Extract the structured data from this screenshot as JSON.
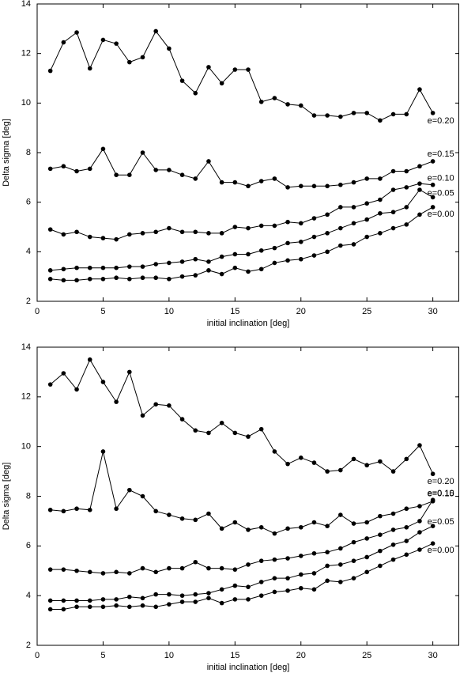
{
  "chart_data": [
    {
      "type": "line",
      "xlabel": "initial inclination [deg]",
      "ylabel": "Delta sigma [deg]",
      "x": [
        1,
        2,
        3,
        4,
        5,
        6,
        7,
        8,
        9,
        10,
        11,
        12,
        13,
        14,
        15,
        16,
        17,
        18,
        19,
        20,
        21,
        22,
        23,
        24,
        25,
        26,
        27,
        28,
        29,
        30
      ],
      "xlim": [
        0,
        32
      ],
      "xticks": [
        0,
        5,
        10,
        15,
        20,
        25,
        30
      ],
      "ylim": [
        2,
        14
      ],
      "yticks": [
        2,
        4,
        6,
        8,
        10,
        12,
        14
      ],
      "series": [
        {
          "name": "e=0.20",
          "color": "#000000",
          "values": [
            11.3,
            12.45,
            12.85,
            11.4,
            12.55,
            12.4,
            11.65,
            11.85,
            12.9,
            12.2,
            10.9,
            10.4,
            11.45,
            10.8,
            11.35,
            11.35,
            10.05,
            10.2,
            9.95,
            9.9,
            9.5,
            9.5,
            9.45,
            9.6,
            9.6,
            9.3,
            9.55,
            9.55,
            10.55,
            9.6
          ]
        },
        {
          "name": "e=0.15",
          "color": "#000000",
          "values": [
            7.35,
            7.45,
            7.25,
            7.35,
            8.15,
            7.1,
            7.1,
            8.0,
            7.3,
            7.3,
            7.1,
            6.95,
            7.65,
            6.8,
            6.8,
            6.65,
            6.85,
            6.95,
            6.6,
            6.65,
            6.65,
            6.65,
            6.7,
            6.8,
            6.95,
            6.95,
            7.25,
            7.25,
            7.45,
            7.65
          ]
        },
        {
          "name": "e=0.10",
          "color": "#000000",
          "values": [
            4.9,
            4.7,
            4.8,
            4.6,
            4.55,
            4.5,
            4.7,
            4.75,
            4.8,
            4.95,
            4.8,
            4.8,
            4.75,
            4.75,
            5.0,
            4.95,
            5.05,
            5.05,
            5.2,
            5.15,
            5.35,
            5.5,
            5.8,
            5.8,
            5.95,
            6.1,
            6.5,
            6.6,
            6.75,
            6.7
          ]
        },
        {
          "name": "e=0.05",
          "color": "#000000",
          "values": [
            3.25,
            3.3,
            3.35,
            3.35,
            3.35,
            3.35,
            3.4,
            3.4,
            3.5,
            3.55,
            3.6,
            3.7,
            3.6,
            3.8,
            3.9,
            3.9,
            4.05,
            4.15,
            4.35,
            4.4,
            4.6,
            4.75,
            4.95,
            5.15,
            5.3,
            5.55,
            5.6,
            5.8,
            6.5,
            6.2
          ]
        },
        {
          "name": "e=0.00",
          "color": "#000000",
          "values": [
            2.9,
            2.85,
            2.85,
            2.9,
            2.9,
            2.95,
            2.9,
            2.95,
            2.95,
            2.9,
            3.0,
            3.05,
            3.25,
            3.1,
            3.35,
            3.2,
            3.3,
            3.55,
            3.65,
            3.7,
            3.85,
            4.0,
            4.25,
            4.3,
            4.6,
            4.75,
            4.95,
            5.1,
            5.5,
            5.8
          ]
        }
      ]
    },
    {
      "type": "line",
      "xlabel": "initial inclination [deg]",
      "ylabel": "Delta sigma [deg]",
      "x": [
        1,
        2,
        3,
        4,
        5,
        6,
        7,
        8,
        9,
        10,
        11,
        12,
        13,
        14,
        15,
        16,
        17,
        18,
        19,
        20,
        21,
        22,
        23,
        24,
        25,
        26,
        27,
        28,
        29,
        30
      ],
      "xlim": [
        0,
        32
      ],
      "xticks": [
        0,
        5,
        10,
        15,
        20,
        25,
        30
      ],
      "ylim": [
        2,
        14
      ],
      "yticks": [
        2,
        4,
        6,
        8,
        10,
        12,
        14
      ],
      "series": [
        {
          "name": "e=0.20",
          "color": "#000000",
          "values": [
            12.5,
            12.95,
            12.3,
            13.5,
            12.6,
            11.8,
            13.0,
            11.25,
            11.7,
            11.65,
            11.1,
            10.65,
            10.55,
            10.95,
            10.55,
            10.4,
            10.7,
            9.8,
            9.3,
            9.55,
            9.35,
            9.0,
            9.05,
            9.5,
            9.25,
            9.4,
            9.0,
            9.5,
            10.05,
            8.9
          ]
        },
        {
          "name": "e=0.15",
          "color": "#000000",
          "values": [
            7.45,
            7.4,
            7.5,
            7.45,
            9.8,
            7.5,
            8.25,
            8.0,
            7.4,
            7.25,
            7.1,
            7.05,
            7.3,
            6.7,
            6.95,
            6.65,
            6.75,
            6.5,
            6.7,
            6.75,
            6.95,
            6.8,
            7.25,
            6.9,
            6.95,
            7.2,
            7.3,
            7.5,
            7.6,
            7.8
          ]
        },
        {
          "name": "e=0.10",
          "color": "#000000",
          "values": [
            5.05,
            5.05,
            5.0,
            4.95,
            4.9,
            4.95,
            4.9,
            5.1,
            4.95,
            5.1,
            5.1,
            5.35,
            5.1,
            5.1,
            5.05,
            5.25,
            5.4,
            5.45,
            5.5,
            5.6,
            5.7,
            5.75,
            5.9,
            6.15,
            6.3,
            6.45,
            6.65,
            6.75,
            7.0,
            7.85
          ]
        },
        {
          "name": "e=0.05",
          "color": "#000000",
          "values": [
            3.8,
            3.8,
            3.8,
            3.8,
            3.85,
            3.85,
            3.95,
            3.9,
            4.05,
            4.05,
            4.0,
            4.05,
            4.1,
            4.25,
            4.4,
            4.35,
            4.55,
            4.7,
            4.7,
            4.85,
            4.9,
            5.2,
            5.25,
            5.4,
            5.55,
            5.8,
            6.05,
            6.2,
            6.55,
            6.8
          ]
        },
        {
          "name": "e=0.00",
          "color": "#000000",
          "values": [
            3.45,
            3.45,
            3.55,
            3.55,
            3.55,
            3.6,
            3.55,
            3.6,
            3.55,
            3.65,
            3.75,
            3.75,
            3.9,
            3.7,
            3.85,
            3.85,
            4.0,
            4.15,
            4.2,
            4.3,
            4.25,
            4.6,
            4.55,
            4.7,
            4.95,
            5.2,
            5.45,
            5.65,
            5.85,
            6.1
          ]
        }
      ]
    }
  ]
}
